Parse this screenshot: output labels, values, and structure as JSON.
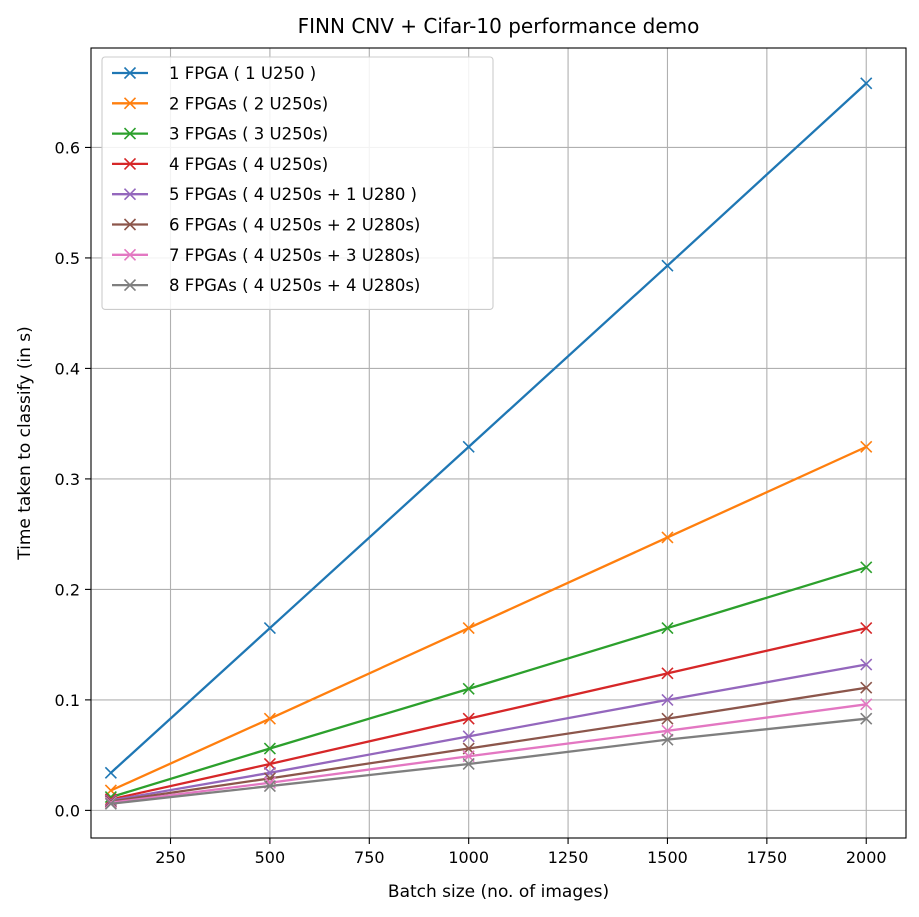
{
  "chart_data": {
    "type": "line",
    "title": "FINN CNV + Cifar-10 performance demo",
    "xlabel": "Batch size (no. of images)",
    "ylabel": "Time taken to classify (in s)",
    "x": [
      100,
      500,
      1000,
      1500,
      2000
    ],
    "xlim": [
      50,
      2100
    ],
    "ylim": [
      -0.025,
      0.69
    ],
    "xticks": [
      250,
      500,
      750,
      1000,
      1250,
      1500,
      1750,
      2000
    ],
    "yticks": [
      0.0,
      0.1,
      0.2,
      0.3,
      0.4,
      0.5,
      0.6
    ],
    "xtick_labels": [
      "250",
      "500",
      "750",
      "1000",
      "1250",
      "1500",
      "1750",
      "2000"
    ],
    "ytick_labels": [
      "0.0",
      "0.1",
      "0.2",
      "0.3",
      "0.4",
      "0.5",
      "0.6"
    ],
    "grid": true,
    "marker": "x",
    "legend_position": "top-left",
    "series": [
      {
        "name": "1 FPGA   ( 1 U250 )",
        "color": "#1f77b4",
        "values": [
          0.034,
          0.165,
          0.329,
          0.493,
          0.658
        ]
      },
      {
        "name": "2 FPGAs ( 2 U250s)",
        "color": "#ff7f0e",
        "values": [
          0.018,
          0.083,
          0.165,
          0.247,
          0.329
        ]
      },
      {
        "name": "3 FPGAs ( 3 U250s)",
        "color": "#2ca02c",
        "values": [
          0.012,
          0.056,
          0.11,
          0.165,
          0.22
        ]
      },
      {
        "name": "4 FPGAs ( 4 U250s)",
        "color": "#d62728",
        "values": [
          0.01,
          0.042,
          0.083,
          0.124,
          0.165
        ]
      },
      {
        "name": "5 FPGAs ( 4 U250s + 1 U280 )",
        "color": "#9467bd",
        "values": [
          0.009,
          0.034,
          0.067,
          0.1,
          0.132
        ]
      },
      {
        "name": "6 FPGAs ( 4 U250s + 2 U280s)",
        "color": "#8c564b",
        "values": [
          0.008,
          0.029,
          0.056,
          0.083,
          0.111
        ]
      },
      {
        "name": "7 FPGAs ( 4 U250s + 3 U280s)",
        "color": "#e377c2",
        "values": [
          0.007,
          0.025,
          0.049,
          0.072,
          0.096
        ]
      },
      {
        "name": "8 FPGAs ( 4 U250s + 4 U280s)",
        "color": "#7f7f7f",
        "values": [
          0.006,
          0.022,
          0.042,
          0.064,
          0.083
        ]
      }
    ]
  }
}
